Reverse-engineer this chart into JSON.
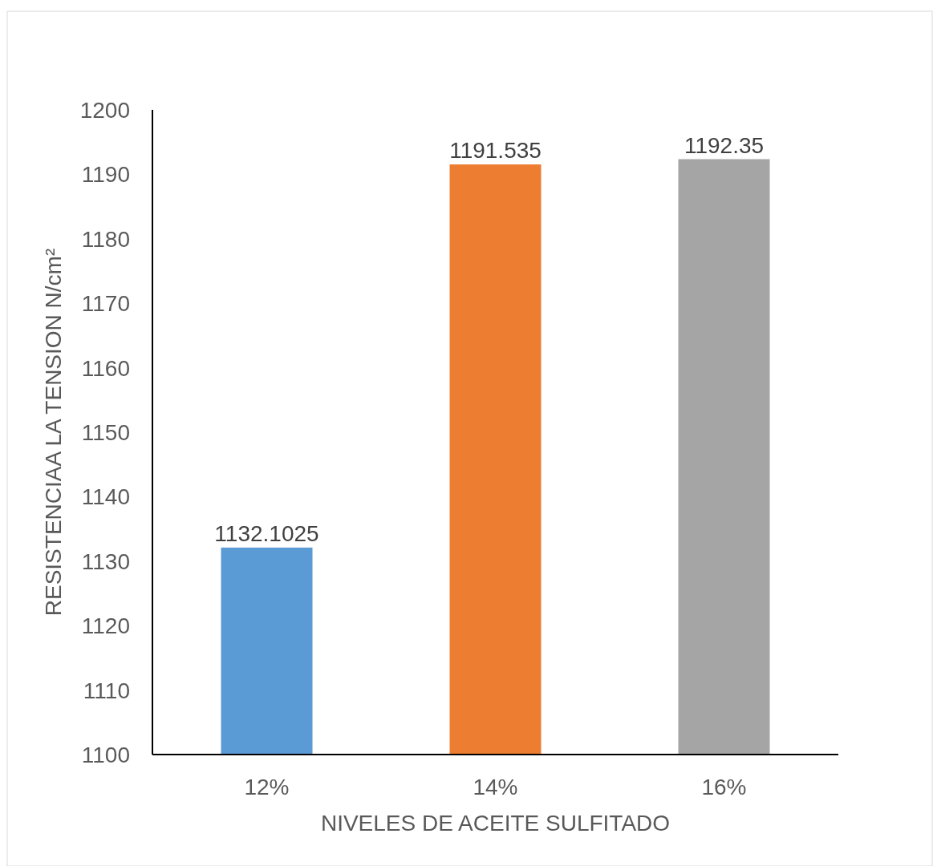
{
  "chart_data": {
    "type": "bar",
    "xlabel": "NIVELES DE ACEITE SULFITADO",
    "ylabel": "RESISTENCIAA LA TENSION N/cm²",
    "categories": [
      "12%",
      "14%",
      "16%"
    ],
    "values": [
      1132.1025,
      1191.535,
      1192.35
    ],
    "colors": [
      "#5b9bd5",
      "#ed7d31",
      "#a5a5a5"
    ],
    "ylim": [
      1100,
      1200
    ],
    "yticks": [
      1100,
      1110,
      1120,
      1130,
      1140,
      1150,
      1160,
      1170,
      1180,
      1190,
      1200
    ],
    "data_labels": true
  }
}
